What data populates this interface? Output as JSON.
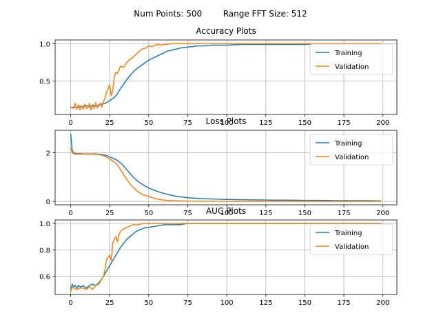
{
  "suptitle": "Num Points: 500        Range FFT Size: 512",
  "chart_data": [
    {
      "type": "line",
      "title": "Accuracy Plots",
      "xlim": [
        -9.95,
        208.95
      ],
      "ylim": [
        0.05,
        1.05
      ],
      "xticks": [
        0,
        25,
        50,
        75,
        100,
        125,
        150,
        175,
        200
      ],
      "yticks": [
        0.5,
        1.0
      ],
      "ytick_labels": [
        "0.5",
        "1.0"
      ],
      "grid": true,
      "legend_position": "upper right",
      "colors": {
        "Training": "#1f77b4",
        "Validation": "#ff7f0e"
      },
      "series": [
        {
          "name": "Training",
          "x": [
            0,
            2,
            4,
            6,
            8,
            10,
            12,
            14,
            16,
            18,
            20,
            22,
            24,
            26,
            28,
            30,
            32,
            34,
            36,
            38,
            40,
            42,
            44,
            46,
            48,
            50,
            52,
            54,
            56,
            58,
            60,
            62,
            64,
            66,
            68,
            70,
            72,
            74,
            76,
            78,
            80,
            85,
            90,
            95,
            100,
            110,
            120,
            130,
            140,
            150,
            160,
            170,
            180,
            190,
            199
          ],
          "values": [
            0.14,
            0.15,
            0.14,
            0.16,
            0.15,
            0.17,
            0.15,
            0.18,
            0.16,
            0.18,
            0.19,
            0.2,
            0.22,
            0.25,
            0.28,
            0.33,
            0.4,
            0.46,
            0.52,
            0.57,
            0.62,
            0.66,
            0.69,
            0.72,
            0.75,
            0.78,
            0.8,
            0.82,
            0.84,
            0.86,
            0.88,
            0.9,
            0.91,
            0.92,
            0.93,
            0.94,
            0.95,
            0.95,
            0.96,
            0.96,
            0.97,
            0.97,
            0.98,
            0.98,
            0.98,
            0.99,
            0.99,
            0.99,
            0.99,
            0.99,
            1.0,
            1.0,
            1.0,
            1.0,
            1.0
          ]
        },
        {
          "name": "Validation",
          "x": [
            0,
            2,
            3,
            4,
            5,
            6,
            7,
            8,
            9,
            10,
            11,
            12,
            13,
            14,
            15,
            16,
            17,
            18,
            19,
            20,
            21,
            22,
            23,
            24,
            25,
            26,
            27,
            28,
            29,
            30,
            32,
            34,
            36,
            38,
            40,
            42,
            44,
            46,
            48,
            50,
            52,
            54,
            56,
            58,
            60,
            65,
            70,
            80,
            90,
            100,
            120,
            140,
            160,
            180,
            199
          ],
          "values": [
            0.15,
            0.13,
            0.2,
            0.12,
            0.18,
            0.11,
            0.17,
            0.12,
            0.19,
            0.13,
            0.14,
            0.2,
            0.11,
            0.17,
            0.13,
            0.21,
            0.14,
            0.16,
            0.2,
            0.15,
            0.22,
            0.27,
            0.35,
            0.4,
            0.45,
            0.3,
            0.38,
            0.55,
            0.62,
            0.6,
            0.7,
            0.68,
            0.75,
            0.79,
            0.82,
            0.86,
            0.9,
            0.93,
            0.94,
            0.97,
            0.96,
            0.98,
            0.99,
            0.98,
            0.99,
            1.0,
            1.0,
            1.0,
            1.0,
            1.0,
            1.0,
            1.0,
            1.0,
            1.0,
            1.0
          ]
        }
      ]
    },
    {
      "type": "line",
      "title": "Loss Plots",
      "xlim": [
        -9.95,
        208.95
      ],
      "ylim": [
        -0.14,
        2.92
      ],
      "xticks": [
        0,
        25,
        50,
        75,
        100,
        125,
        150,
        175,
        200
      ],
      "yticks": [
        0,
        2
      ],
      "ytick_labels": [
        "0",
        "2"
      ],
      "grid": true,
      "legend_position": "upper right",
      "colors": {
        "Training": "#1f77b4",
        "Validation": "#ff7f0e"
      },
      "series": [
        {
          "name": "Training",
          "x": [
            0,
            1,
            2,
            4,
            6,
            8,
            10,
            12,
            14,
            16,
            18,
            20,
            22,
            24,
            26,
            28,
            30,
            32,
            34,
            36,
            38,
            40,
            42,
            44,
            46,
            48,
            50,
            52,
            54,
            56,
            58,
            60,
            62,
            64,
            66,
            68,
            70,
            75,
            80,
            85,
            90,
            100,
            110,
            120,
            130,
            140,
            150,
            160,
            170,
            180,
            190,
            199
          ],
          "values": [
            2.78,
            2.1,
            1.98,
            1.96,
            1.96,
            1.95,
            1.95,
            1.95,
            1.95,
            1.95,
            1.94,
            1.93,
            1.9,
            1.86,
            1.8,
            1.75,
            1.68,
            1.58,
            1.45,
            1.3,
            1.15,
            1.0,
            0.88,
            0.78,
            0.7,
            0.62,
            0.55,
            0.5,
            0.45,
            0.4,
            0.36,
            0.32,
            0.29,
            0.26,
            0.23,
            0.21,
            0.19,
            0.15,
            0.13,
            0.11,
            0.1,
            0.08,
            0.07,
            0.06,
            0.05,
            0.05,
            0.04,
            0.04,
            0.03,
            0.03,
            0.03,
            0.02
          ]
        },
        {
          "name": "Validation",
          "x": [
            0,
            1,
            2,
            4,
            6,
            8,
            10,
            12,
            14,
            16,
            18,
            20,
            22,
            24,
            26,
            28,
            30,
            32,
            34,
            36,
            38,
            40,
            42,
            44,
            46,
            48,
            50,
            52,
            54,
            56,
            58,
            60,
            65,
            70,
            80,
            90,
            100,
            120,
            140,
            160,
            180,
            199
          ],
          "values": [
            2.2,
            2.0,
            1.95,
            1.94,
            1.94,
            1.94,
            1.94,
            1.94,
            1.94,
            1.93,
            1.92,
            1.9,
            1.85,
            1.78,
            1.7,
            1.62,
            1.5,
            1.3,
            1.1,
            0.9,
            0.72,
            0.58,
            0.46,
            0.36,
            0.28,
            0.24,
            0.2,
            0.16,
            0.12,
            0.09,
            0.07,
            0.05,
            0.03,
            0.02,
            0.01,
            0.01,
            0.0,
            0.0,
            0.0,
            0.0,
            0.0,
            0.0
          ]
        }
      ]
    },
    {
      "type": "line",
      "title": "AUC Plots",
      "xlim": [
        -9.95,
        208.95
      ],
      "ylim": [
        0.462,
        1.026
      ],
      "xticks": [
        0,
        25,
        50,
        75,
        100,
        125,
        150,
        175,
        200
      ],
      "yticks": [
        0.6,
        0.8,
        1.0
      ],
      "ytick_labels": [
        "0.6",
        "0.8",
        "1.0"
      ],
      "grid": true,
      "legend_position": "upper right",
      "colors": {
        "Training": "#1f77b4",
        "Validation": "#ff7f0e"
      },
      "series": [
        {
          "name": "Training",
          "x": [
            0,
            1,
            2,
            3,
            4,
            5,
            6,
            7,
            8,
            9,
            10,
            12,
            14,
            16,
            18,
            20,
            22,
            24,
            26,
            28,
            30,
            32,
            34,
            36,
            38,
            40,
            42,
            44,
            46,
            48,
            50,
            55,
            60,
            65,
            70,
            75,
            80,
            90,
            100,
            120,
            140,
            160,
            180,
            199
          ],
          "values": [
            0.5,
            0.54,
            0.52,
            0.53,
            0.51,
            0.53,
            0.52,
            0.52,
            0.53,
            0.52,
            0.51,
            0.53,
            0.54,
            0.53,
            0.55,
            0.58,
            0.62,
            0.66,
            0.7,
            0.74,
            0.78,
            0.82,
            0.85,
            0.88,
            0.9,
            0.92,
            0.94,
            0.95,
            0.96,
            0.97,
            0.97,
            0.98,
            0.99,
            0.99,
            0.99,
            1.0,
            1.0,
            1.0,
            1.0,
            1.0,
            1.0,
            1.0,
            1.0,
            1.0
          ]
        },
        {
          "name": "Validation",
          "x": [
            0,
            1,
            2,
            4,
            6,
            8,
            10,
            12,
            14,
            16,
            18,
            20,
            21,
            22,
            23,
            24,
            25,
            26,
            27,
            28,
            29,
            30,
            31,
            32,
            34,
            36,
            38,
            40,
            42,
            44,
            46,
            48,
            50,
            55,
            60,
            70,
            80,
            100,
            120,
            140,
            160,
            180,
            199
          ],
          "values": [
            0.48,
            0.52,
            0.51,
            0.5,
            0.51,
            0.51,
            0.5,
            0.52,
            0.5,
            0.53,
            0.54,
            0.58,
            0.6,
            0.65,
            0.73,
            0.74,
            0.76,
            0.72,
            0.85,
            0.88,
            0.9,
            0.86,
            0.92,
            0.94,
            0.96,
            0.97,
            0.98,
            0.99,
            0.99,
            0.99,
            1.0,
            1.0,
            1.0,
            1.0,
            1.0,
            1.0,
            1.0,
            1.0,
            1.0,
            1.0,
            1.0,
            1.0,
            1.0
          ]
        }
      ]
    }
  ]
}
